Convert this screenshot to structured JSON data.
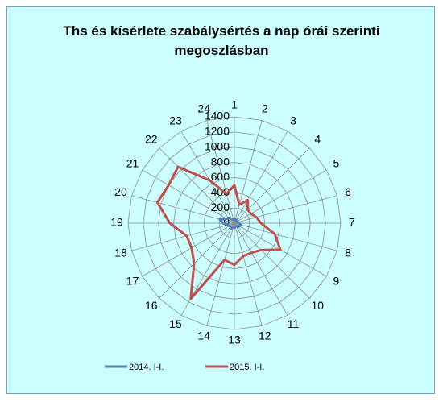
{
  "chart_data": {
    "type": "radar",
    "title": "Ths és kísérlete szabálysértés a nap órái szerinti megoszlásban",
    "categories": [
      "1",
      "2",
      "3",
      "4",
      "5",
      "6",
      "7",
      "8",
      "9",
      "10",
      "11",
      "12",
      "13",
      "14",
      "15",
      "16",
      "17",
      "18",
      "19",
      "20",
      "21",
      "22",
      "23",
      "24"
    ],
    "series": [
      {
        "name": "2014. I-I.",
        "color": "#4f81bd",
        "values": [
          60,
          40,
          50,
          40,
          40,
          50,
          60,
          90,
          80,
          60,
          50,
          50,
          60,
          60,
          80,
          70,
          70,
          80,
          150,
          200,
          120,
          100,
          60,
          50
        ]
      },
      {
        "name": "2015. I-I.",
        "color": "#c0504d",
        "values": [
          500,
          250,
          350,
          250,
          250,
          300,
          350,
          550,
          700,
          500,
          450,
          450,
          550,
          500,
          1150,
          750,
          650,
          650,
          850,
          1050,
          1000,
          1050,
          650,
          400
        ]
      }
    ],
    "ylim": [
      0,
      1400
    ],
    "yticks": [
      0,
      200,
      400,
      600,
      800,
      1000,
      1200,
      1400
    ],
    "grid": true,
    "legend": "bottom"
  }
}
